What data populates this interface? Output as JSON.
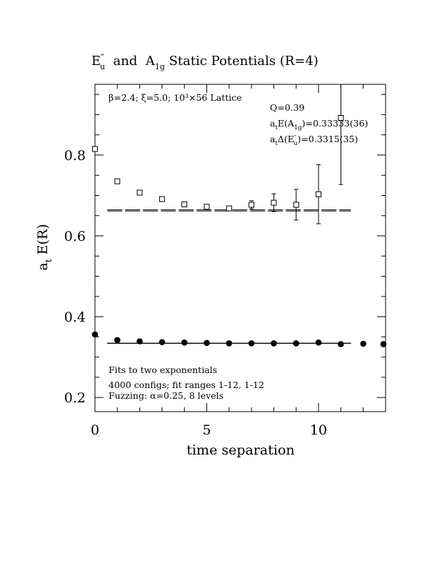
{
  "chart_data": {
    "type": "scatter",
    "title": {
      "part1_main": "E",
      "part1_prime": "″",
      "part1_sub": "u",
      "connector": "  and  A",
      "part2_sub": "1g",
      "tail": " Static Potentials (R=4)"
    },
    "xlabel": "time separation",
    "ylabel": {
      "main": "a",
      "sub": "t",
      "tail": " E(R)"
    },
    "xlim": [
      0,
      13
    ],
    "ylim": [
      0.165,
      0.975
    ],
    "x_ticks": [
      0,
      5,
      10
    ],
    "y_ticks": [
      0.2,
      0.4,
      0.6,
      0.8
    ],
    "x_tick_labels": [
      "0",
      "5",
      "10"
    ],
    "y_tick_labels": [
      "0.2",
      "0.4",
      "0.6",
      "0.8"
    ],
    "grid": false,
    "series": [
      {
        "marker": "open-square",
        "points": [
          {
            "x": 0,
            "y": 0.815,
            "err": 0.003
          },
          {
            "x": 1,
            "y": 0.735,
            "err": 0.003
          },
          {
            "x": 2,
            "y": 0.707,
            "err": 0.003
          },
          {
            "x": 3,
            "y": 0.691,
            "err": 0.003
          },
          {
            "x": 4,
            "y": 0.678,
            "err": 0.004
          },
          {
            "x": 5,
            "y": 0.672,
            "err": 0.005
          },
          {
            "x": 6,
            "y": 0.668,
            "err": 0.005
          },
          {
            "x": 7,
            "y": 0.677,
            "err": 0.01
          },
          {
            "x": 8,
            "y": 0.682,
            "err": 0.022
          },
          {
            "x": 9,
            "y": 0.677,
            "err": 0.038
          },
          {
            "x": 10,
            "y": 0.703,
            "err": 0.073
          },
          {
            "x": 11,
            "y": 0.892,
            "err": 0.165
          }
        ]
      },
      {
        "marker": "filled-circle",
        "points": [
          {
            "x": 0,
            "y": 0.356,
            "err": 0.002
          },
          {
            "x": 1,
            "y": 0.342,
            "err": 0.002
          },
          {
            "x": 2,
            "y": 0.339,
            "err": 0.002
          },
          {
            "x": 3,
            "y": 0.337,
            "err": 0.002
          },
          {
            "x": 4,
            "y": 0.336,
            "err": 0.002
          },
          {
            "x": 5,
            "y": 0.335,
            "err": 0.002
          },
          {
            "x": 6,
            "y": 0.334,
            "err": 0.002
          },
          {
            "x": 7,
            "y": 0.334,
            "err": 0.002
          },
          {
            "x": 8,
            "y": 0.334,
            "err": 0.002
          },
          {
            "x": 9,
            "y": 0.334,
            "err": 0.003
          },
          {
            "x": 10,
            "y": 0.336,
            "err": 0.003
          },
          {
            "x": 11,
            "y": 0.332,
            "err": 0.003
          },
          {
            "x": 12,
            "y": 0.333,
            "err": 0.004
          },
          {
            "x": 13,
            "y": 0.332,
            "err": 0.004
          }
        ]
      }
    ],
    "fit_lines": [
      {
        "x_range": [
          0.55,
          11.45
        ],
        "y": 0.6645,
        "style": "dashed"
      },
      {
        "x_range": [
          0.55,
          11.45
        ],
        "y": 0.6615,
        "style": "dashed"
      },
      {
        "x_range": [
          0.55,
          11.45
        ],
        "y": 0.3346,
        "style": "solid"
      },
      {
        "x_range": [
          0.55,
          11.45
        ],
        "y": 0.334,
        "style": "solid"
      }
    ],
    "annotations": {
      "lattice_info": "β=2.4; ξ=5.0; 10³×56 Lattice",
      "q": "Q=0.39",
      "line_a1g": {
        "prefix": "a",
        "prefix_sub": "t",
        "mid": "E(A",
        "mid_sub": "1g",
        "value": ")=0.33333(36)"
      },
      "line_eu": {
        "prefix": "a",
        "prefix_sub": "t",
        "mid": "Δ(E",
        "mid_sup": "″",
        "mid_sub": "u",
        "value": ")=0.3315(35)"
      },
      "fits_note": "Fits to two exponentials",
      "configs_note": "4000 configs; fit ranges 1-12, 1-12",
      "fuzzing_note": "Fuzzing: α=0.25, 8 levels"
    }
  }
}
